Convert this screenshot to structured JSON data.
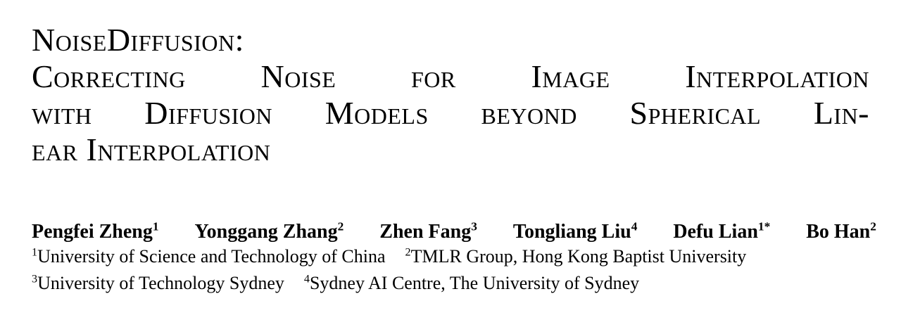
{
  "page": {
    "background_color": "#ffffff",
    "text_color": "#000000"
  },
  "title": {
    "lines": [
      "NoiseDiffusion:",
      "Correcting Noise for Image Interpolation",
      "with Diffusion Models beyond Spherical Lin-",
      "ear Interpolation"
    ]
  },
  "authors": [
    {
      "name": "Pengfei Zheng",
      "sup": "1"
    },
    {
      "name": "Yonggang Zhang",
      "sup": "2"
    },
    {
      "name": "Zhen Fang",
      "sup": "3"
    },
    {
      "name": "Tongliang Liu",
      "sup": "4"
    },
    {
      "name": "Defu Lian",
      "sup": "1*"
    },
    {
      "name": "Bo Han",
      "sup": "2"
    }
  ],
  "affiliations": [
    {
      "sup": "1",
      "name": "University of Science and Technology of China"
    },
    {
      "sup": "2",
      "name": "TMLR Group, Hong Kong Baptist University"
    },
    {
      "sup": "3",
      "name": "University of Technology Sydney"
    },
    {
      "sup": "4",
      "name": "Sydney AI Centre, The University of Sydney"
    }
  ]
}
